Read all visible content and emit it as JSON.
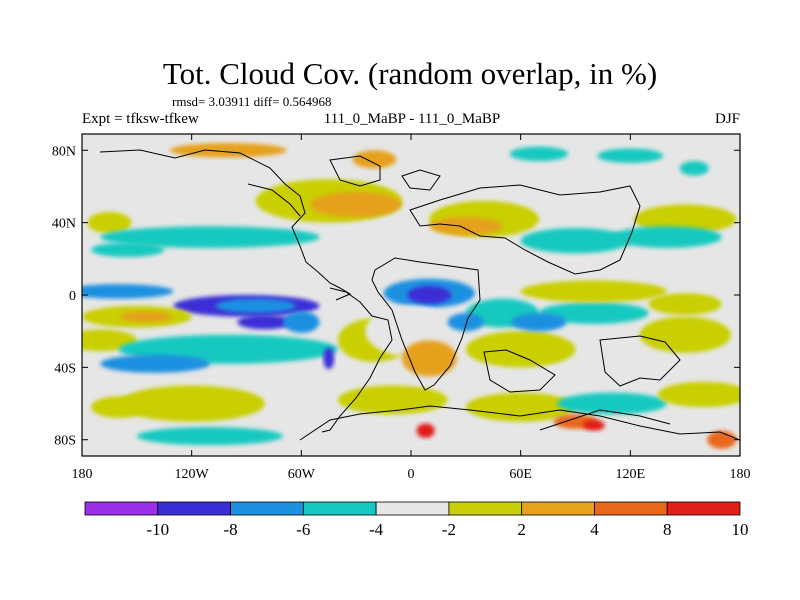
{
  "title": "Tot. Cloud Cov. (random overlap, in %)",
  "stats": "rmsd= 3.03911 diff= 0.564968",
  "left_label": "Expt = tfksw-tfkew",
  "center_label": "111_0_MaBP - 111_0_MaBP",
  "right_label": "DJF",
  "lat_ticks": [
    {
      "label": "80N",
      "lat": 80
    },
    {
      "label": "40N",
      "lat": 40
    },
    {
      "label": "0",
      "lat": 0
    },
    {
      "label": "40S",
      "lat": -40
    },
    {
      "label": "80S",
      "lat": -80
    }
  ],
  "lon_ticks": [
    {
      "label": "180",
      "lon": -180
    },
    {
      "label": "120W",
      "lon": -120
    },
    {
      "label": "60W",
      "lon": -60
    },
    {
      "label": "0",
      "lon": 0
    },
    {
      "label": "60E",
      "lon": 60
    },
    {
      "label": "120E",
      "lon": 120
    },
    {
      "label": "180",
      "lon": 180
    }
  ],
  "colorbar": {
    "colors": [
      "#9b30e8",
      "#3a2fd6",
      "#1e90e0",
      "#16c9c0",
      "#e6e6e6",
      "#c9cf06",
      "#e6a11d",
      "#e8671a",
      "#e11f17"
    ],
    "labels": [
      "-10",
      "-8",
      "-6",
      "-4",
      "-2",
      "2",
      "4",
      "8",
      "10"
    ]
  },
  "map": {
    "background": "#e6e6e6",
    "blobs": [
      {
        "lon": -100,
        "lat": 80,
        "rx": 32,
        "ry": 4,
        "level": 6
      },
      {
        "lon": -20,
        "lat": 75,
        "rx": 12,
        "ry": 5,
        "level": 6
      },
      {
        "lon": 70,
        "lat": 78,
        "rx": 16,
        "ry": 4,
        "level": 3
      },
      {
        "lon": 120,
        "lat": 77,
        "rx": 18,
        "ry": 4,
        "level": 3
      },
      {
        "lon": 155,
        "lat": 70,
        "rx": 8,
        "ry": 4,
        "level": 3
      },
      {
        "lon": -165,
        "lat": 40,
        "rx": 12,
        "ry": 6,
        "level": 5
      },
      {
        "lon": -45,
        "lat": 52,
        "rx": 40,
        "ry": 12,
        "level": 5
      },
      {
        "lon": -30,
        "lat": 50,
        "rx": 25,
        "ry": 7,
        "level": 6
      },
      {
        "lon": 40,
        "lat": 42,
        "rx": 30,
        "ry": 10,
        "level": 5
      },
      {
        "lon": 30,
        "lat": 38,
        "rx": 20,
        "ry": 5,
        "level": 6
      },
      {
        "lon": 150,
        "lat": 42,
        "rx": 28,
        "ry": 8,
        "level": 5
      },
      {
        "lon": -110,
        "lat": 32,
        "rx": 60,
        "ry": 6,
        "level": 3
      },
      {
        "lon": 90,
        "lat": 30,
        "rx": 30,
        "ry": 7,
        "level": 3
      },
      {
        "lon": 140,
        "lat": 32,
        "rx": 30,
        "ry": 6,
        "level": 3
      },
      {
        "lon": -155,
        "lat": 25,
        "rx": 20,
        "ry": 4,
        "level": 3
      },
      {
        "lon": -160,
        "lat": 2,
        "rx": 30,
        "ry": 4,
        "level": 2
      },
      {
        "lon": -90,
        "lat": -6,
        "rx": 40,
        "ry": 6,
        "level": 1
      },
      {
        "lon": -85,
        "lat": -6,
        "rx": 22,
        "ry": 4,
        "level": 2
      },
      {
        "lon": 10,
        "lat": 1,
        "rx": 25,
        "ry": 8,
        "level": 2
      },
      {
        "lon": 10,
        "lat": 0,
        "rx": 12,
        "ry": 5,
        "level": 1
      },
      {
        "lon": 50,
        "lat": -10,
        "rx": 20,
        "ry": 8,
        "level": 3
      },
      {
        "lon": 100,
        "lat": -10,
        "rx": 30,
        "ry": 6,
        "level": 3
      },
      {
        "lon": -150,
        "lat": -12,
        "rx": 30,
        "ry": 6,
        "level": 5
      },
      {
        "lon": -145,
        "lat": -12,
        "rx": 14,
        "ry": 3,
        "level": 6
      },
      {
        "lon": 100,
        "lat": 2,
        "rx": 40,
        "ry": 6,
        "level": 5
      },
      {
        "lon": 150,
        "lat": -5,
        "rx": 20,
        "ry": 6,
        "level": 5
      },
      {
        "lon": -20,
        "lat": -25,
        "rx": 20,
        "ry": 12,
        "level": 5
      },
      {
        "lon": 0,
        "lat": -20,
        "rx": 25,
        "ry": 14,
        "level": 4
      },
      {
        "lon": 10,
        "lat": -35,
        "rx": 15,
        "ry": 10,
        "level": 6
      },
      {
        "lon": 60,
        "lat": -30,
        "rx": 30,
        "ry": 10,
        "level": 5
      },
      {
        "lon": 150,
        "lat": -22,
        "rx": 25,
        "ry": 10,
        "level": 5
      },
      {
        "lon": -170,
        "lat": -25,
        "rx": 20,
        "ry": 6,
        "level": 5
      },
      {
        "lon": -100,
        "lat": -30,
        "rx": 60,
        "ry": 8,
        "level": 3
      },
      {
        "lon": -120,
        "lat": -60,
        "rx": 40,
        "ry": 10,
        "level": 5
      },
      {
        "lon": -160,
        "lat": -62,
        "rx": 15,
        "ry": 6,
        "level": 5
      },
      {
        "lon": -10,
        "lat": -58,
        "rx": 30,
        "ry": 8,
        "level": 5
      },
      {
        "lon": 60,
        "lat": -62,
        "rx": 30,
        "ry": 8,
        "level": 5
      },
      {
        "lon": 110,
        "lat": -60,
        "rx": 30,
        "ry": 6,
        "level": 3
      },
      {
        "lon": 160,
        "lat": -55,
        "rx": 25,
        "ry": 7,
        "level": 5
      },
      {
        "lon": 90,
        "lat": -70,
        "rx": 12,
        "ry": 4,
        "level": 7
      },
      {
        "lon": 100,
        "lat": -72,
        "rx": 6,
        "ry": 3,
        "level": 8
      },
      {
        "lon": 8,
        "lat": -75,
        "rx": 5,
        "ry": 4,
        "level": 8
      },
      {
        "lon": -110,
        "lat": -78,
        "rx": 40,
        "ry": 5,
        "level": 3
      },
      {
        "lon": 170,
        "lat": -80,
        "rx": 8,
        "ry": 5,
        "level": 7
      },
      {
        "lon": -80,
        "lat": -15,
        "rx": 15,
        "ry": 4,
        "level": 1
      },
      {
        "lon": -60,
        "lat": -15,
        "rx": 10,
        "ry": 6,
        "level": 2
      },
      {
        "lon": -45,
        "lat": -35,
        "rx": 3,
        "ry": 6,
        "level": 1
      },
      {
        "lon": 30,
        "lat": -15,
        "rx": 10,
        "ry": 5,
        "level": 2
      },
      {
        "lon": 70,
        "lat": -15,
        "rx": 15,
        "ry": 5,
        "level": 2
      },
      {
        "lon": -140,
        "lat": -38,
        "rx": 30,
        "ry": 5,
        "level": 2
      }
    ]
  }
}
